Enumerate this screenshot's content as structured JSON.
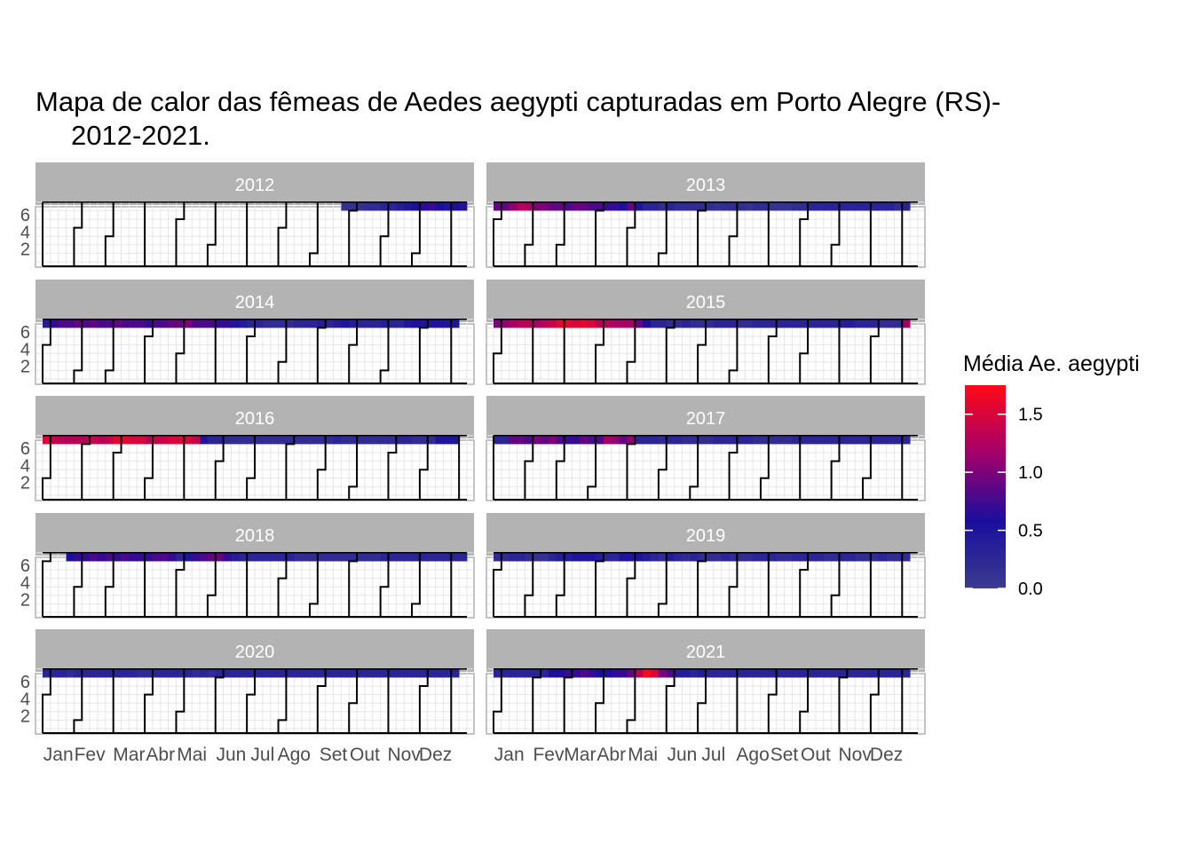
{
  "chart_data": {
    "type": "heatmap",
    "title_line1": "Mapa de calor das fêmeas de Aedes aegypti capturadas em Porto Alegre (RS)-",
    "title_line2": "2012-2021.",
    "y_ticks": [
      "2",
      "4",
      "6"
    ],
    "month_labels": [
      "Jan",
      "Fev",
      "Mar",
      "Abr",
      "Mai",
      "Jun",
      "Jul",
      "Ago",
      "Set",
      "Out",
      "Nov",
      "Dez"
    ],
    "legend": {
      "title": "Média Ae. aegypti",
      "ticks": [
        "0.0",
        "0.5",
        "1.0",
        "1.5"
      ],
      "range": [
        0,
        1.75
      ],
      "colors": [
        "#3b3b8f",
        "#1a0e9e",
        "#a3006a",
        "#ff0a18"
      ]
    },
    "panels": [
      {
        "year": "2012",
        "start_dow": 0,
        "days": 366,
        "weekly_values": [
          null,
          null,
          null,
          null,
          null,
          null,
          null,
          null,
          null,
          null,
          null,
          null,
          null,
          null,
          null,
          null,
          null,
          null,
          null,
          null,
          null,
          null,
          null,
          null,
          null,
          null,
          null,
          null,
          null,
          null,
          null,
          null,
          null,
          null,
          null,
          null,
          null,
          null,
          0.1,
          0.1,
          0.15,
          0.2,
          0.2,
          0.3,
          0.3,
          0.4,
          0.5,
          0.6,
          0.65,
          0.7,
          0.6,
          0.5,
          0.6,
          0.5
        ]
      },
      {
        "year": "2013",
        "start_dow": 2,
        "days": 365,
        "weekly_values": [
          0.9,
          0.9,
          1.1,
          1.3,
          1.2,
          1.0,
          1.0,
          0.9,
          0.9,
          0.8,
          0.9,
          0.9,
          0.8,
          0.8,
          0.7,
          0.7,
          0.6,
          0.9,
          0.5,
          0.3,
          0.3,
          0.2,
          0.3,
          0.2,
          0.2,
          0.2,
          0.2,
          0.2,
          0.1,
          0.2,
          0.2,
          0.2,
          0.1,
          0.2,
          0.2,
          0.1,
          0.1,
          0.1,
          0.2,
          0.2,
          0.3,
          0.3,
          0.3,
          0.3,
          0.3,
          0.3,
          0.3,
          0.3,
          0.3,
          0.3,
          0.3,
          0.2,
          0.3,
          null
        ]
      },
      {
        "year": "2014",
        "start_dow": 3,
        "days": 365,
        "weekly_values": [
          0.4,
          0.7,
          0.8,
          0.8,
          0.9,
          0.8,
          0.9,
          0.8,
          0.8,
          0.9,
          0.8,
          0.8,
          0.8,
          0.7,
          0.8,
          0.8,
          0.9,
          0.9,
          1.0,
          0.8,
          0.8,
          0.8,
          0.7,
          0.7,
          0.5,
          0.4,
          0.3,
          0.3,
          0.2,
          0.2,
          0.2,
          0.2,
          0.3,
          0.3,
          0.3,
          0.4,
          0.3,
          0.4,
          0.5,
          0.4,
          0.3,
          0.3,
          0.3,
          0.4,
          0.3,
          0.3,
          0.5,
          0.6,
          0.5,
          0.5,
          0.5,
          0.5,
          0.5
        ]
      },
      {
        "year": "2015",
        "start_dow": 4,
        "days": 365,
        "weekly_values": [
          1.0,
          1.1,
          1.2,
          1.3,
          1.3,
          1.2,
          1.3,
          1.4,
          1.6,
          1.6,
          1.5,
          1.6,
          1.5,
          1.3,
          1.3,
          1.2,
          1.2,
          1.2,
          0.9,
          0.6,
          0.3,
          0.3,
          0.2,
          0.2,
          0.3,
          0.2,
          0.2,
          0.2,
          0.3,
          0.3,
          0.3,
          0.2,
          0.2,
          0.3,
          0.3,
          0.3,
          0.3,
          0.3,
          0.3,
          0.3,
          0.3,
          0.3,
          0.3,
          0.3,
          0.4,
          0.4,
          0.3,
          0.3,
          0.3,
          0.2,
          0.2,
          0.2,
          1.2
        ]
      },
      {
        "year": "2016",
        "start_dow": 5,
        "days": 366,
        "weekly_values": [
          1.5,
          1.4,
          1.3,
          1.3,
          1.3,
          1.3,
          1.4,
          1.3,
          1.4,
          1.6,
          1.6,
          1.5,
          1.5,
          1.3,
          1.4,
          1.4,
          1.5,
          1.5,
          1.5,
          1.4,
          0.5,
          0.3,
          0.3,
          0.2,
          0.2,
          0.2,
          0.2,
          0.2,
          0.2,
          0.2,
          0.2,
          0.2,
          0.2,
          0.2,
          0.2,
          0.2,
          0.2,
          0.3,
          0.2,
          0.2,
          0.2,
          0.2,
          0.2,
          0.2,
          0.2,
          0.3,
          0.3,
          0.2,
          0.2,
          0.2,
          0.5,
          0.5,
          0.5
        ]
      },
      {
        "year": "2017",
        "start_dow": 0,
        "days": 365,
        "weekly_values": [
          0.3,
          0.3,
          0.9,
          0.9,
          0.8,
          1.0,
          0.9,
          1.0,
          0.8,
          0.7,
          0.7,
          0.9,
          0.8,
          0.8,
          1.2,
          1.1,
          0.9,
          1.1,
          0.3,
          0.3,
          0.3,
          0.2,
          0.3,
          0.3,
          0.2,
          0.2,
          0.2,
          0.2,
          0.3,
          0.3,
          0.3,
          0.3,
          0.3,
          0.2,
          0.2,
          0.2,
          0.2,
          0.2,
          0.3,
          0.3,
          0.3,
          0.3,
          0.3,
          0.3,
          0.3,
          0.3,
          0.3,
          0.3,
          0.3,
          0.3,
          0.3,
          0.3,
          0.3
        ]
      },
      {
        "year": "2018",
        "start_dow": 1,
        "days": 365,
        "weekly_values": [
          null,
          null,
          null,
          0.6,
          0.7,
          0.7,
          0.8,
          0.7,
          0.8,
          0.7,
          0.8,
          0.7,
          0.7,
          0.7,
          0.8,
          0.8,
          0.7,
          0.3,
          0.5,
          0.7,
          0.8,
          0.9,
          0.9,
          0.7,
          0.4,
          0.3,
          0.3,
          0.3,
          0.3,
          0.3,
          0.3,
          0.3,
          0.2,
          0.2,
          0.2,
          0.2,
          0.2,
          0.2,
          0.2,
          0.2,
          0.2,
          0.2,
          0.2,
          0.3,
          0.3,
          0.3,
          0.3,
          0.3,
          0.3,
          0.3,
          0.3,
          0.3,
          0.3,
          0.3
        ]
      },
      {
        "year": "2019",
        "start_dow": 2,
        "days": 365,
        "weekly_values": [
          0.2,
          0.2,
          0.3,
          0.3,
          0.2,
          0.1,
          0.1,
          0.3,
          0.4,
          0.4,
          0.5,
          0.5,
          0.5,
          0.4,
          0.3,
          0.3,
          0.5,
          0.5,
          0.5,
          0.4,
          0.3,
          0.2,
          0.4,
          0.3,
          0.2,
          0.3,
          0.2,
          0.2,
          0.2,
          0.3,
          0.2,
          0.2,
          0.2,
          0.3,
          0.3,
          0.3,
          0.2,
          0.2,
          0.3,
          0.3,
          0.3,
          0.3,
          0.2,
          0.2,
          0.3,
          0.3,
          0.2,
          0.2,
          0.2,
          0.3,
          0.2,
          0.2,
          0.2,
          null
        ]
      },
      {
        "year": "2020",
        "start_dow": 3,
        "days": 366,
        "weekly_values": [
          0.3,
          0.3,
          0.3,
          0.2,
          0.3,
          0.3,
          0.3,
          0.3,
          0.3,
          0.3,
          0.3,
          0.3,
          0.2,
          0.2,
          0.3,
          0.3,
          0.3,
          0.3,
          0.3,
          0.2,
          0.3,
          0.2,
          0.3,
          0.3,
          0.3,
          0.3,
          0.3,
          0.3,
          0.3,
          0.3,
          0.3,
          0.3,
          0.3,
          0.3,
          0.3,
          0.3,
          0.3,
          0.3,
          0.3,
          0.3,
          0.3,
          0.3,
          0.3,
          0.3,
          0.3,
          0.3,
          0.3,
          0.3,
          0.3,
          0.3,
          0.3,
          0.3,
          0.3
        ]
      },
      {
        "year": "2021",
        "start_dow": 5,
        "days": 365,
        "weekly_values": [
          0.3,
          0.3,
          0.3,
          0.3,
          0.3,
          0.3,
          0.3,
          0.6,
          0.6,
          0.7,
          0.7,
          0.8,
          0.7,
          0.6,
          0.6,
          0.7,
          0.7,
          0.9,
          1.3,
          1.7,
          1.5,
          1.0,
          0.8,
          0.4,
          0.4,
          0.3,
          0.4,
          0.3,
          0.3,
          0.3,
          0.3,
          0.3,
          0.3,
          0.3,
          0.3,
          0.3,
          0.3,
          0.3,
          0.3,
          0.3,
          0.3,
          0.3,
          0.3,
          0.3,
          0.3,
          0.3,
          0.3,
          0.3,
          0.3,
          0.3,
          0.3,
          0.3,
          0.3
        ]
      }
    ]
  }
}
